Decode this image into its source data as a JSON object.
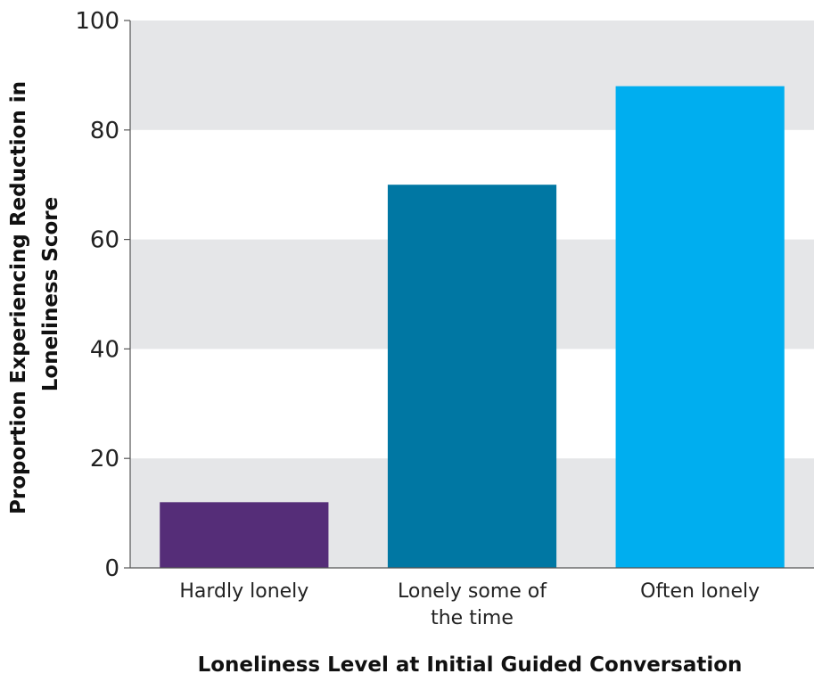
{
  "chart_data": {
    "type": "bar",
    "title": "",
    "xlabel": "Loneliness Level at Initial Guided Conversation",
    "ylabel_lines": [
      "Proportion  Experiencing Reduction in",
      "Loneliness Score"
    ],
    "categories": [
      [
        "Hardly lonely"
      ],
      [
        "Lonely some of",
        "the time"
      ],
      [
        "Often lonely"
      ]
    ],
    "values": [
      12,
      70,
      88
    ],
    "bar_colors": [
      "#552d78",
      "#0077a3",
      "#00aeef"
    ],
    "ylim": [
      0,
      100
    ],
    "yticks": [
      "0",
      "20",
      "40",
      "60",
      "80",
      "100"
    ],
    "grid": "alternating horizontal bands",
    "band_color": "#e5e6e8",
    "legend": "none"
  }
}
